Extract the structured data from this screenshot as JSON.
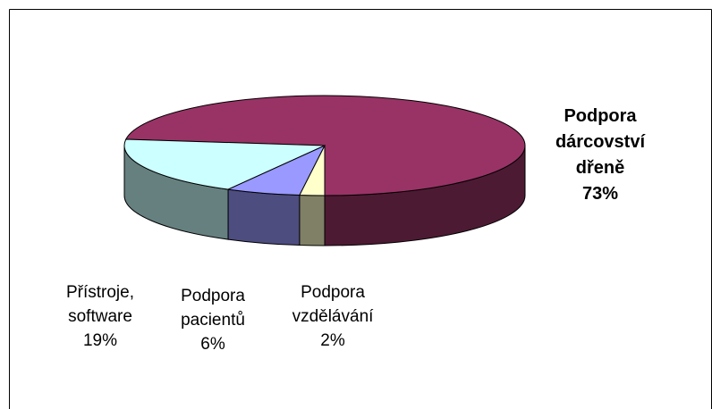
{
  "chart_data": {
    "type": "pie3d",
    "categories": [
      "Podpora dárcovství dřeně",
      "Přístroje, software",
      "Podpora pacientů",
      "Podpora vzdělávání"
    ],
    "values": [
      73,
      19,
      6,
      2
    ],
    "value_labels": [
      "73%",
      "19%",
      "6%",
      "2%"
    ],
    "colors": [
      "#993366",
      "#ccffff",
      "#9999ff",
      "#ffffcc"
    ],
    "side_colors": [
      "#4d1a33",
      "#668080",
      "#4d4d80",
      "#808066"
    ]
  }
}
